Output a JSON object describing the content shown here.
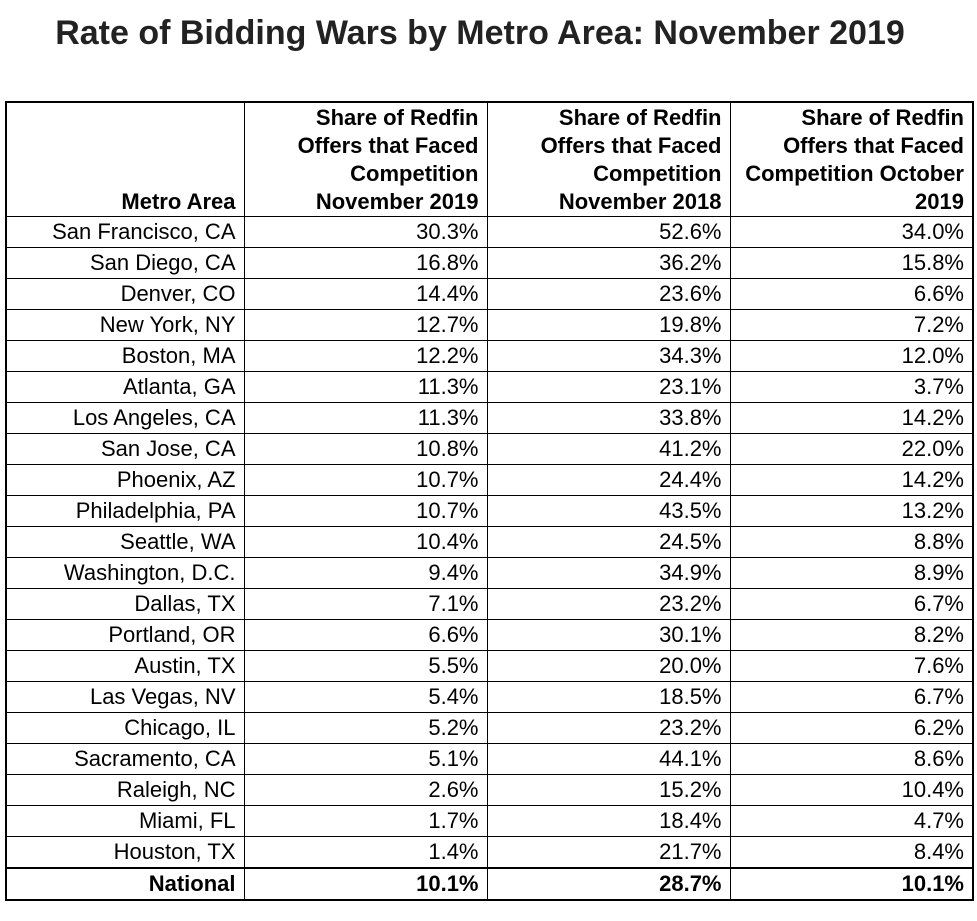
{
  "chart_data": {
    "type": "table",
    "title": "Rate of Bidding Wars by Metro Area: November 2019",
    "columns": [
      "Metro Area",
      "Share of Redfin Offers that Faced Competition November 2019",
      "Share of Redfin Offers that Faced Competition November 2018",
      "Share of Redfin Offers that Faced Competition October 2019"
    ],
    "rows": [
      [
        "San Francisco, CA",
        "30.3%",
        "52.6%",
        "34.0%"
      ],
      [
        "San Diego, CA",
        "16.8%",
        "36.2%",
        "15.8%"
      ],
      [
        "Denver, CO",
        "14.4%",
        "23.6%",
        "6.6%"
      ],
      [
        "New York, NY",
        "12.7%",
        "19.8%",
        "7.2%"
      ],
      [
        "Boston, MA",
        "12.2%",
        "34.3%",
        "12.0%"
      ],
      [
        "Atlanta, GA",
        "11.3%",
        "23.1%",
        "3.7%"
      ],
      [
        "Los Angeles, CA",
        "11.3%",
        "33.8%",
        "14.2%"
      ],
      [
        "San Jose, CA",
        "10.8%",
        "41.2%",
        "22.0%"
      ],
      [
        "Phoenix, AZ",
        "10.7%",
        "24.4%",
        "14.2%"
      ],
      [
        "Philadelphia, PA",
        "10.7%",
        "43.5%",
        "13.2%"
      ],
      [
        "Seattle, WA",
        "10.4%",
        "24.5%",
        "8.8%"
      ],
      [
        "Washington, D.C.",
        "9.4%",
        "34.9%",
        "8.9%"
      ],
      [
        "Dallas, TX",
        "7.1%",
        "23.2%",
        "6.7%"
      ],
      [
        "Portland, OR",
        "6.6%",
        "30.1%",
        "8.2%"
      ],
      [
        "Austin, TX",
        "5.5%",
        "20.0%",
        "7.6%"
      ],
      [
        "Las Vegas, NV",
        "5.4%",
        "18.5%",
        "6.7%"
      ],
      [
        "Chicago, IL",
        "5.2%",
        "23.2%",
        "6.2%"
      ],
      [
        "Sacramento, CA",
        "5.1%",
        "44.1%",
        "8.6%"
      ],
      [
        "Raleigh, NC",
        "2.6%",
        "15.2%",
        "10.4%"
      ],
      [
        "Miami, FL",
        "1.7%",
        "18.4%",
        "4.7%"
      ],
      [
        "Houston, TX",
        "1.4%",
        "21.7%",
        "8.4%"
      ]
    ],
    "total_row": [
      "National",
      "10.1%",
      "28.7%",
      "10.1%"
    ]
  }
}
